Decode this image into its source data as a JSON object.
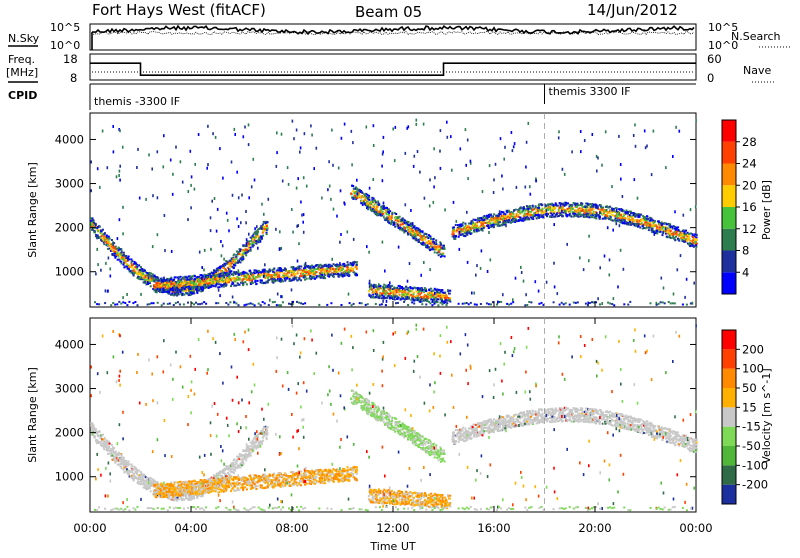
{
  "header": {
    "station": "Fort Hays West (fitACF)",
    "beam": "Beam 05",
    "date": "14/Jun/2012"
  },
  "summary": {
    "nsky_label": "N.Sky",
    "nsky_ticks": [
      "10^5",
      "10^0"
    ],
    "nsearch_label": "N.Search",
    "nsearch_ticks": [
      "10^5",
      "10^0"
    ],
    "freq_label_1": "Freq.",
    "freq_label_2": "[MHz]",
    "freq_ticks": [
      "18",
      "8"
    ],
    "nave_label": "Nave",
    "nave_ticks": [
      "60",
      "0"
    ],
    "cpid_label": "CPID",
    "cpid_segments": [
      {
        "label": "themis -3300 IF",
        "start_hour": 0
      },
      {
        "label": "themis 3300 IF",
        "start_hour": 18
      }
    ],
    "freq_steps": [
      {
        "hour": 0,
        "mhz": 15
      },
      {
        "hour": 2,
        "mhz": 10
      },
      {
        "hour": 14,
        "mhz": 15
      },
      {
        "hour": 24,
        "mhz": 15
      }
    ]
  },
  "chart_data": [
    {
      "type": "heatmap",
      "name": "power-panel",
      "ylabel": "Slant Range [km]",
      "ylim": [
        200,
        4600
      ],
      "xlim": [
        0,
        24
      ],
      "yticks": [
        1000,
        2000,
        3000,
        4000
      ],
      "colorbar": {
        "label": "Power [dB]",
        "ticks": [
          "28",
          "24",
          "20",
          "16",
          "12",
          "8",
          "4"
        ],
        "colors": [
          "#0000ff",
          "#1e2f9e",
          "#2e7d4f",
          "#46c23b",
          "#ffcc00",
          "#ff8a00",
          "#ff4000",
          "#ff0000"
        ]
      },
      "scatter_bands": [
        {
          "h0": 0.0,
          "h1": 7.0,
          "r0": 2100,
          "r1": 2100,
          "rmid": 1050,
          "p": 16
        },
        {
          "h0": 2.5,
          "h1": 10.5,
          "r0": 700,
          "r1": 1100,
          "p": 6
        },
        {
          "h0": 10.3,
          "h1": 14.0,
          "r0": 2850,
          "r1": 1450,
          "p": 18
        },
        {
          "h0": 11.0,
          "h1": 14.2,
          "r0": 600,
          "r1": 450,
          "p": 20
        },
        {
          "h0": 14.3,
          "h1": 24.0,
          "r0": 1900,
          "r1": 1700,
          "rmid": 2250,
          "p": 10
        }
      ]
    },
    {
      "type": "heatmap",
      "name": "velocity-panel",
      "ylabel": "Slant Range [km]",
      "ylim": [
        200,
        4600
      ],
      "xlim": [
        0,
        24
      ],
      "yticks": [
        1000,
        2000,
        3000,
        4000
      ],
      "colorbar": {
        "label": "Velocity [m s^-1]",
        "ticks": [
          "200",
          "100",
          "50",
          "15",
          "-15",
          "-50",
          "-100",
          "-200"
        ],
        "colors": [
          "#1c2f9e",
          "#2e6b46",
          "#4fb63a",
          "#7ed957",
          "#c8c8c8",
          "#ffb000",
          "#ff8a00",
          "#ff4000",
          "#ff0000"
        ]
      }
    }
  ],
  "xaxis": {
    "label": "Time UT",
    "ticks": [
      "00:00",
      "04:00",
      "08:00",
      "12:00",
      "16:00",
      "20:00",
      "00:00"
    ]
  }
}
